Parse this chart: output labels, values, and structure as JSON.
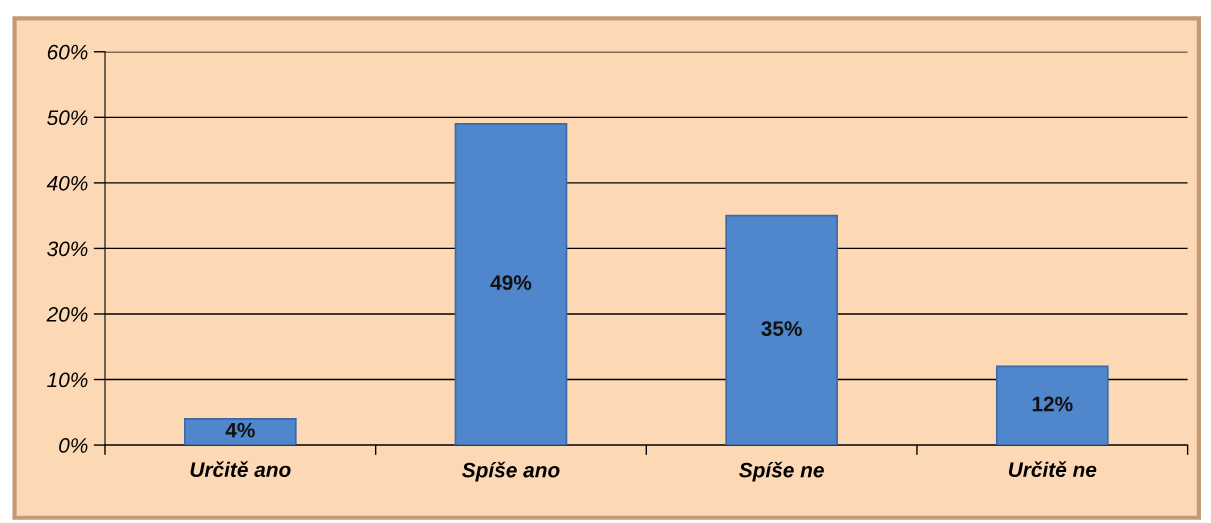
{
  "chart_data": {
    "type": "bar",
    "categories": [
      "Určitě ano",
      "Spíše ano",
      "Spíše ne",
      "Určitě ne"
    ],
    "values": [
      4,
      49,
      35,
      12
    ],
    "value_labels": [
      "4%",
      "49%",
      "35%",
      "12%"
    ],
    "color": "#4f86cc",
    "ylim": [
      0,
      60
    ],
    "yticks": [
      {
        "value": 0,
        "label": "0%"
      },
      {
        "value": 10,
        "label": "10%"
      },
      {
        "value": 20,
        "label": "20%"
      },
      {
        "value": 30,
        "label": "30%"
      },
      {
        "value": 40,
        "label": "40%"
      },
      {
        "value": 50,
        "label": "50%"
      },
      {
        "value": 60,
        "label": "60%"
      }
    ],
    "grid": "y",
    "legend": false
  }
}
